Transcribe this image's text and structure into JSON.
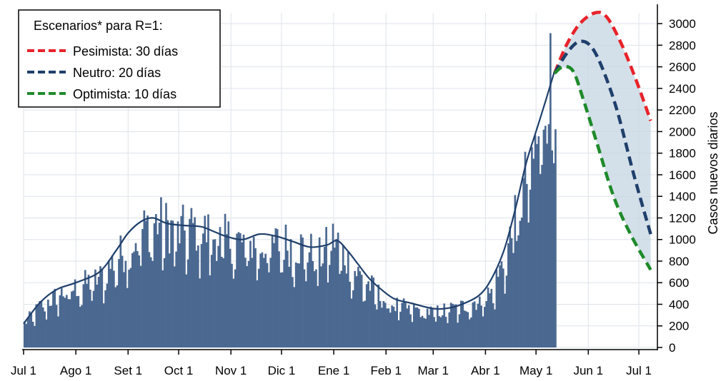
{
  "chart_data": {
    "type": "bar",
    "title": "",
    "xlabel": "",
    "ylabel": "Casos nuevos diarios",
    "y_axis_side": "right",
    "ylim": [
      0,
      3100
    ],
    "yticks": [
      0,
      200,
      400,
      600,
      800,
      1000,
      1200,
      1400,
      1600,
      1800,
      2000,
      2200,
      2400,
      2600,
      2800,
      3000
    ],
    "x_ticks": [
      {
        "day": 0,
        "label": "Jul 1"
      },
      {
        "day": 31,
        "label": "Ago 1"
      },
      {
        "day": 62,
        "label": "Set 1"
      },
      {
        "day": 92,
        "label": "Oct 1"
      },
      {
        "day": 123,
        "label": "Nov 1"
      },
      {
        "day": 153,
        "label": "Dic 1"
      },
      {
        "day": 184,
        "label": "Ene 1"
      },
      {
        "day": 215,
        "label": "Feb 1"
      },
      {
        "day": 243,
        "label": "Mar 1"
      },
      {
        "day": 274,
        "label": "Abr 1"
      },
      {
        "day": 304,
        "label": "May 1"
      },
      {
        "day": 335,
        "label": "Jun 1"
      },
      {
        "day": 365,
        "label": "Jul 1"
      }
    ],
    "x_range": [
      0,
      376
    ],
    "grid": true,
    "legend": {
      "placement": "top-left",
      "title": "Escenarios* para R=1:",
      "entries": [
        {
          "label": "Pesimista: 30 días",
          "color": "#e8222a"
        },
        {
          "label": "Neutro: 20 días",
          "color": "#1f3f6b"
        },
        {
          "label": "Optimista: 10 días",
          "color": "#1e8a2a"
        }
      ]
    },
    "bar_color": "#4a6890",
    "trend_color": "#1f3f6b",
    "band_color": "#c6d6e2",
    "daily_cases_keypoints": [
      [
        0,
        240
      ],
      [
        10,
        420
      ],
      [
        20,
        520
      ],
      [
        31,
        600
      ],
      [
        45,
        700
      ],
      [
        55,
        900
      ],
      [
        62,
        1000
      ],
      [
        72,
        1200
      ],
      [
        80,
        1250
      ],
      [
        92,
        1150
      ],
      [
        100,
        1200
      ],
      [
        115,
        1100
      ],
      [
        130,
        1050
      ],
      [
        140,
        1000
      ],
      [
        153,
        1050
      ],
      [
        165,
        1000
      ],
      [
        175,
        900
      ],
      [
        184,
        1100
      ],
      [
        192,
        850
      ],
      [
        200,
        700
      ],
      [
        215,
        450
      ],
      [
        225,
        400
      ],
      [
        243,
        350
      ],
      [
        258,
        400
      ],
      [
        270,
        480
      ],
      [
        277,
        550
      ],
      [
        285,
        900
      ],
      [
        292,
        1300
      ],
      [
        298,
        1700
      ],
      [
        304,
        2000
      ],
      [
        308,
        2400
      ],
      [
        312,
        2700
      ],
      [
        315,
        2800
      ]
    ],
    "trend": [
      [
        0,
        220
      ],
      [
        10,
        420
      ],
      [
        20,
        540
      ],
      [
        31,
        600
      ],
      [
        45,
        700
      ],
      [
        55,
        900
      ],
      [
        62,
        1060
      ],
      [
        70,
        1170
      ],
      [
        77,
        1200
      ],
      [
        85,
        1150
      ],
      [
        95,
        1130
      ],
      [
        105,
        1120
      ],
      [
        112,
        1080
      ],
      [
        120,
        1030
      ],
      [
        130,
        1000
      ],
      [
        140,
        1050
      ],
      [
        150,
        1030
      ],
      [
        160,
        980
      ],
      [
        170,
        930
      ],
      [
        180,
        950
      ],
      [
        186,
        990
      ],
      [
        192,
        900
      ],
      [
        198,
        780
      ],
      [
        205,
        640
      ],
      [
        212,
        540
      ],
      [
        220,
        450
      ],
      [
        230,
        410
      ],
      [
        243,
        360
      ],
      [
        252,
        365
      ],
      [
        260,
        400
      ],
      [
        270,
        480
      ],
      [
        277,
        620
      ],
      [
        285,
        900
      ],
      [
        292,
        1300
      ],
      [
        298,
        1700
      ],
      [
        304,
        2000
      ],
      [
        310,
        2300
      ],
      [
        315,
        2560
      ]
    ],
    "scenarios": [
      {
        "name": "Pesimista: 30 días",
        "color": "#e8222a",
        "points": [
          [
            315,
            2540
          ],
          [
            322,
            2800
          ],
          [
            330,
            3000
          ],
          [
            339,
            3100
          ],
          [
            346,
            3060
          ],
          [
            355,
            2800
          ],
          [
            364,
            2450
          ],
          [
            372,
            2100
          ]
        ]
      },
      {
        "name": "Neutro: 20 días",
        "color": "#1f3f6b",
        "points": [
          [
            315,
            2540
          ],
          [
            322,
            2720
          ],
          [
            329,
            2830
          ],
          [
            336,
            2800
          ],
          [
            343,
            2600
          ],
          [
            352,
            2200
          ],
          [
            362,
            1600
          ],
          [
            372,
            1050
          ]
        ]
      },
      {
        "name": "Optimista: 10 días",
        "color": "#1e8a2a",
        "points": [
          [
            315,
            2540
          ],
          [
            320,
            2600
          ],
          [
            326,
            2560
          ],
          [
            332,
            2300
          ],
          [
            340,
            1900
          ],
          [
            350,
            1400
          ],
          [
            360,
            1050
          ],
          [
            372,
            720
          ]
        ]
      }
    ]
  }
}
